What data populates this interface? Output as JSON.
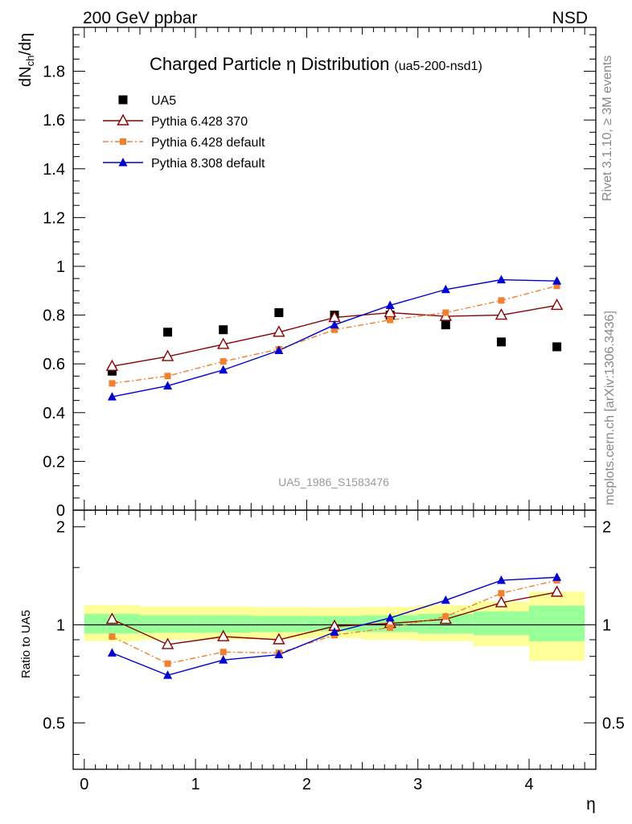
{
  "header": {
    "left": "200 GeV ppbar",
    "right": "NSD"
  },
  "side": {
    "rivet": "Rivet 3.1.10, ≥ 3M events",
    "mcplots": "mcplots.cern.ch [arXiv:1306.3436]"
  },
  "chart_data": [
    {
      "type": "line",
      "title": "Charged Particle η Distribution",
      "subtitle": "(ua5-200-nsd1)",
      "ylabel": "dN_ch/dη",
      "watermark": "UA5_1986_S1583476",
      "xlim": [
        -0.1,
        4.6
      ],
      "ylim": [
        0,
        1.98
      ],
      "yticks": [
        0,
        0.2,
        0.4,
        0.6,
        0.8,
        1,
        1.2,
        1.4,
        1.6,
        1.8
      ],
      "ytick_labels": [
        "0",
        "0.2",
        "0.4",
        "0.6",
        "0.8",
        "1",
        "1.2",
        "1.4",
        "1.6",
        "1.8"
      ],
      "legend_position": "top-left",
      "x": [
        0.25,
        0.75,
        1.25,
        1.75,
        2.25,
        2.75,
        3.25,
        3.75,
        4.25
      ],
      "series": [
        {
          "name": "UA5",
          "marker": "square",
          "line": "none",
          "color": "#000000",
          "values": [
            0.57,
            0.73,
            0.74,
            0.81,
            0.8,
            0.8,
            0.76,
            0.69,
            0.67
          ]
        },
        {
          "name": "Pythia 6.428 370",
          "marker": "open-triangle",
          "line": "solid",
          "color": "#8b0000",
          "values": [
            0.59,
            0.63,
            0.68,
            0.73,
            0.79,
            0.81,
            0.795,
            0.8,
            0.84
          ]
        },
        {
          "name": "Pythia 6.428 default",
          "marker": "small-square",
          "line": "dashdot",
          "color": "#f08030",
          "values": [
            0.52,
            0.55,
            0.61,
            0.66,
            0.74,
            0.78,
            0.81,
            0.86,
            0.92
          ]
        },
        {
          "name": "Pythia 8.308 default",
          "marker": "filled-triangle",
          "line": "solid",
          "color": "#0000d0",
          "values": [
            0.465,
            0.51,
            0.575,
            0.655,
            0.76,
            0.84,
            0.905,
            0.945,
            0.94
          ]
        }
      ]
    },
    {
      "type": "line",
      "ylabel": "Ratio to UA5",
      "xlabel": "η",
      "xlim": [
        -0.1,
        4.6
      ],
      "ylim": [
        0.36,
        2.25
      ],
      "log_scale_y": true,
      "yticks": [
        0.5,
        1,
        2
      ],
      "ytick_labels": [
        "0.5",
        "1",
        "2"
      ],
      "xticks": [
        0,
        1,
        2,
        3,
        4
      ],
      "xtick_labels": [
        "0",
        "1",
        "2",
        "3",
        "4"
      ],
      "bands": [
        {
          "x0": 0.0,
          "x1": 0.5,
          "yellow": [
            0.89,
            1.15
          ],
          "green": [
            0.94,
            1.08
          ]
        },
        {
          "x0": 0.5,
          "x1": 1.0,
          "yellow": [
            0.9,
            1.14
          ],
          "green": [
            0.945,
            1.07
          ]
        },
        {
          "x0": 1.0,
          "x1": 1.5,
          "yellow": [
            0.9,
            1.14
          ],
          "green": [
            0.945,
            1.07
          ]
        },
        {
          "x0": 1.5,
          "x1": 2.0,
          "yellow": [
            0.905,
            1.135
          ],
          "green": [
            0.95,
            1.065
          ]
        },
        {
          "x0": 2.0,
          "x1": 2.5,
          "yellow": [
            0.91,
            1.13
          ],
          "green": [
            0.955,
            1.065
          ]
        },
        {
          "x0": 2.5,
          "x1": 3.0,
          "yellow": [
            0.9,
            1.135
          ],
          "green": [
            0.95,
            1.07
          ]
        },
        {
          "x0": 3.0,
          "x1": 3.5,
          "yellow": [
            0.89,
            1.15
          ],
          "green": [
            0.94,
            1.08
          ]
        },
        {
          "x0": 3.5,
          "x1": 4.0,
          "yellow": [
            0.86,
            1.18
          ],
          "green": [
            0.93,
            1.1
          ]
        },
        {
          "x0": 4.0,
          "x1": 4.5,
          "yellow": [
            0.775,
            1.265
          ],
          "green": [
            0.89,
            1.145
          ]
        }
      ],
      "x": [
        0.25,
        0.75,
        1.25,
        1.75,
        2.25,
        2.75,
        3.25,
        3.75,
        4.25
      ],
      "series": [
        {
          "name": "Pythia 6.428 370",
          "marker": "open-triangle",
          "line": "solid",
          "color": "#8b0000",
          "values": [
            1.04,
            0.87,
            0.92,
            0.9,
            0.99,
            1.01,
            1.04,
            1.17,
            1.26
          ]
        },
        {
          "name": "Pythia 6.428 default",
          "marker": "small-square",
          "line": "dashdot",
          "color": "#f08030",
          "values": [
            0.92,
            0.76,
            0.825,
            0.82,
            0.93,
            0.98,
            1.06,
            1.25,
            1.37
          ]
        },
        {
          "name": "Pythia 8.308 default",
          "marker": "filled-triangle",
          "line": "solid",
          "color": "#0000d0",
          "values": [
            0.82,
            0.7,
            0.78,
            0.81,
            0.95,
            1.05,
            1.19,
            1.37,
            1.4
          ]
        }
      ]
    }
  ]
}
